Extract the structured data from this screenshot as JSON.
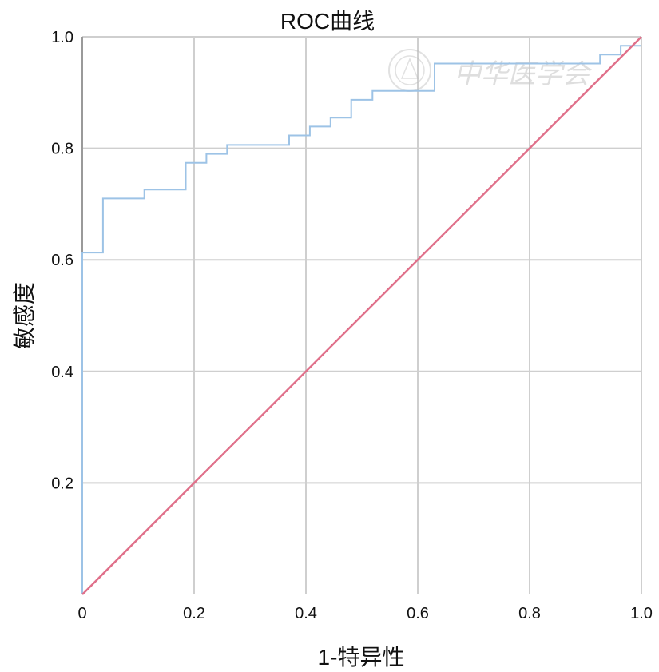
{
  "chart_data": {
    "type": "line",
    "title": "ROC曲线",
    "xlabel": "1-特异性",
    "ylabel": "敏感度",
    "xlim": [
      0,
      1
    ],
    "ylim": [
      0,
      1
    ],
    "grid": true,
    "x_ticks": [
      "0",
      "0.2",
      "0.4",
      "0.6",
      "0.8",
      "1.0"
    ],
    "y_ticks": [
      "0.2",
      "0.4",
      "0.6",
      "0.8",
      "1.0"
    ],
    "x_tick_values": [
      0,
      0.2,
      0.4,
      0.6,
      0.8,
      1.0
    ],
    "y_tick_values": [
      0.2,
      0.4,
      0.6,
      0.8,
      1.0
    ],
    "series": [
      {
        "color": "#9dc3e6",
        "x": [
          0,
          0,
          0.037,
          0.037,
          0.111,
          0.111,
          0.185,
          0.185,
          0.222,
          0.222,
          0.259,
          0.259,
          0.37,
          0.37,
          0.407,
          0.407,
          0.444,
          0.444,
          0.481,
          0.481,
          0.519,
          0.519,
          0.63,
          0.63,
          0.926,
          0.926,
          0.963,
          0.963,
          1.0
        ],
        "y": [
          0,
          0.613,
          0.613,
          0.71,
          0.71,
          0.726,
          0.726,
          0.774,
          0.774,
          0.79,
          0.79,
          0.806,
          0.806,
          0.823,
          0.823,
          0.839,
          0.839,
          0.855,
          0.855,
          0.887,
          0.887,
          0.903,
          0.903,
          0.952,
          0.952,
          0.968,
          0.968,
          0.984,
          0.984
        ]
      },
      {
        "color": "#e0708a",
        "x": [
          0,
          1
        ],
        "y": [
          0,
          1
        ]
      }
    ]
  },
  "watermark": {
    "text": "中华医学会"
  }
}
